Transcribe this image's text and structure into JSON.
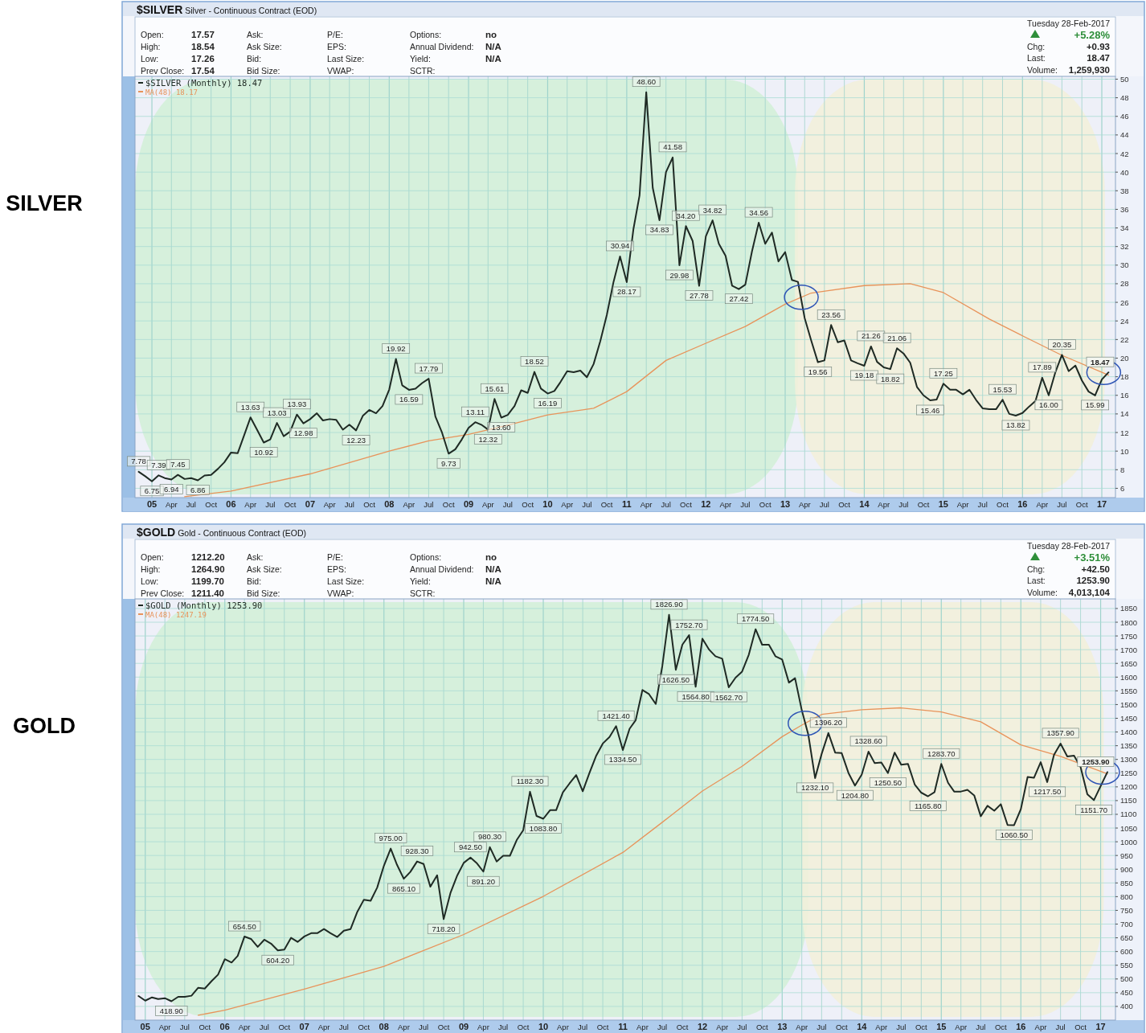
{
  "chart_data": [
    {
      "type": "line",
      "title": "SILVER",
      "subtitle": "$SILVER Silver - Continuous Contract (EOD)",
      "annotations": [
        "Open: 17.57",
        "High: 18.54",
        "Low: 17.26",
        "Prev Close: 17.54",
        "Ask:",
        "Ask Size:",
        "Bid:",
        "Bid Size:",
        "P/E:",
        "EPS:",
        "Last Size:",
        "VWAP:",
        "Options: no",
        "Annual Dividend: N/A",
        "Yield: N/A",
        "SCTR:",
        "Tuesday  28-Feb-2017",
        "+5.28%",
        "Chg: +0.93",
        "Last: 18.47",
        "Volume: 1,259,930"
      ],
      "x": [
        "2004-11",
        "2004-12",
        "2005-01",
        "2005-02",
        "2005-03",
        "2005-04",
        "2005-05",
        "2005-06",
        "2005-07",
        "2005-08",
        "2005-09",
        "2005-10",
        "2005-11",
        "2005-12",
        "2006-01",
        "2006-02",
        "2006-03",
        "2006-04",
        "2006-05",
        "2006-06",
        "2006-07",
        "2006-08",
        "2006-09",
        "2006-10",
        "2006-11",
        "2006-12",
        "2007-01",
        "2007-02",
        "2007-03",
        "2007-04",
        "2007-05",
        "2007-06",
        "2007-07",
        "2007-08",
        "2007-09",
        "2007-10",
        "2007-11",
        "2007-12",
        "2008-01",
        "2008-02",
        "2008-03",
        "2008-04",
        "2008-05",
        "2008-06",
        "2008-07",
        "2008-08",
        "2008-09",
        "2008-10",
        "2008-11",
        "2008-12",
        "2009-01",
        "2009-02",
        "2009-03",
        "2009-04",
        "2009-05",
        "2009-06",
        "2009-07",
        "2009-08",
        "2009-09",
        "2009-10",
        "2009-11",
        "2009-12",
        "2010-01",
        "2010-02",
        "2010-03",
        "2010-04",
        "2010-05",
        "2010-06",
        "2010-07",
        "2010-08",
        "2010-09",
        "2010-10",
        "2010-11",
        "2010-12",
        "2011-01",
        "2011-02",
        "2011-03",
        "2011-04",
        "2011-05",
        "2011-06",
        "2011-07",
        "2011-08",
        "2011-09",
        "2011-10",
        "2011-11",
        "2011-12",
        "2012-01",
        "2012-02",
        "2012-03",
        "2012-04",
        "2012-05",
        "2012-06",
        "2012-07",
        "2012-08",
        "2012-09",
        "2012-10",
        "2012-11",
        "2012-12",
        "2013-01",
        "2013-02",
        "2013-03",
        "2013-04",
        "2013-05",
        "2013-06",
        "2013-07",
        "2013-08",
        "2013-09",
        "2013-10",
        "2013-11",
        "2013-12",
        "2014-01",
        "2014-02",
        "2014-03",
        "2014-04",
        "2014-05",
        "2014-06",
        "2014-07",
        "2014-08",
        "2014-09",
        "2014-10",
        "2014-11",
        "2014-12",
        "2015-01",
        "2015-02",
        "2015-03",
        "2015-04",
        "2015-05",
        "2015-06",
        "2015-07",
        "2015-08",
        "2015-09",
        "2015-10",
        "2015-11",
        "2015-12",
        "2016-01",
        "2016-02",
        "2016-03",
        "2016-04",
        "2016-05",
        "2016-06",
        "2016-07",
        "2016-08",
        "2016-09",
        "2016-10",
        "2016-11",
        "2016-12",
        "2017-01",
        "2017-02"
      ],
      "series": [
        {
          "name": "$SILVER (Monthly) 18.47",
          "color": "#1f2a24",
          "values": [
            7.78,
            7.3,
            6.75,
            7.39,
            7.1,
            6.94,
            7.45,
            7.0,
            7.1,
            6.86,
            7.38,
            7.45,
            8.08,
            8.79,
            9.85,
            9.78,
            11.6,
            13.63,
            12.3,
            10.92,
            11.25,
            13.03,
            11.6,
            12.1,
            13.93,
            12.98,
            13.44,
            14.07,
            13.3,
            13.44,
            13.37,
            12.31,
            12.84,
            12.23,
            13.79,
            14.43,
            14.07,
            14.85,
            16.62,
            19.92,
            17.07,
            16.59,
            16.72,
            17.32,
            17.79,
            13.72,
            11.96,
            9.73,
            10.2,
            11.26,
            12.49,
            13.11,
            12.84,
            12.32,
            15.61,
            13.6,
            13.9,
            14.85,
            16.54,
            16.26,
            18.52,
            16.72,
            16.19,
            16.47,
            17.42,
            18.59,
            18.48,
            18.66,
            17.95,
            19.36,
            21.83,
            24.65,
            28.2,
            30.94,
            28.17,
            33.9,
            37.5,
            48.6,
            38.3,
            34.83,
            40.0,
            41.58,
            29.98,
            34.2,
            32.6,
            27.78,
            33.1,
            34.82,
            32.3,
            31.0,
            27.8,
            27.42,
            27.9,
            31.5,
            34.56,
            32.3,
            33.5,
            30.4,
            31.4,
            28.4,
            28.2,
            24.3,
            21.9,
            19.56,
            19.75,
            23.56,
            21.7,
            21.9,
            19.75,
            19.45,
            19.18,
            21.26,
            19.6,
            19.0,
            18.82,
            21.06,
            20.5,
            19.5,
            16.9,
            16.0,
            15.46,
            15.55,
            17.25,
            16.6,
            16.6,
            16.1,
            16.6,
            15.5,
            14.6,
            14.5,
            14.5,
            15.53,
            14.0,
            13.82,
            14.1,
            14.8,
            15.4,
            17.89,
            16.0,
            18.5,
            20.35,
            18.6,
            19.2,
            17.6,
            16.4,
            15.99,
            17.7,
            18.47
          ],
          "value_labels": [
            "7.78",
            null,
            "6.75",
            "7.39",
            null,
            "6.94",
            "7.45",
            null,
            null,
            "6.86",
            null,
            null,
            null,
            null,
            null,
            null,
            null,
            "13.63",
            null,
            "10.92",
            null,
            "13.03",
            null,
            null,
            "13.93",
            "12.98",
            null,
            null,
            null,
            null,
            null,
            null,
            null,
            "12.23",
            null,
            null,
            null,
            null,
            null,
            "19.92",
            null,
            "16.59",
            null,
            null,
            "17.79",
            null,
            null,
            "9.73",
            null,
            null,
            null,
            "13.11",
            null,
            "12.32",
            "15.61",
            "13.60",
            null,
            null,
            null,
            null,
            "18.52",
            null,
            "16.19",
            null,
            null,
            null,
            null,
            null,
            null,
            null,
            null,
            null,
            null,
            "30.94",
            "28.17",
            null,
            null,
            "48.60",
            null,
            "34.83",
            null,
            "41.58",
            "29.98",
            "34.20",
            null,
            "27.78",
            null,
            "34.82",
            null,
            null,
            null,
            "27.42",
            null,
            null,
            "34.56",
            null,
            null,
            null,
            null,
            null,
            null,
            null,
            null,
            "19.56",
            null,
            "23.56",
            null,
            null,
            null,
            null,
            "19.18",
            "21.26",
            null,
            null,
            "18.82",
            "21.06",
            null,
            null,
            null,
            null,
            "15.46",
            null,
            "17.25",
            null,
            null,
            null,
            null,
            null,
            null,
            null,
            null,
            "15.53",
            null,
            "13.82",
            null,
            null,
            null,
            "17.89",
            "16.00",
            null,
            "20.35",
            null,
            null,
            null,
            null,
            "15.99",
            null,
            "18.47"
          ]
        },
        {
          "name": "MA(48) 18.17",
          "color": "#e8935a",
          "x": [
            "2005-06",
            "2006-01",
            "2007-01",
            "2008-01",
            "2008-07",
            "2009-01",
            "2009-07",
            "2010-01",
            "2010-08",
            "2011-01",
            "2011-07",
            "2012-01",
            "2012-07",
            "2013-01",
            "2013-05",
            "2014-01",
            "2014-08",
            "2015-01",
            "2015-08",
            "2016-01",
            "2016-07",
            "2017-02"
          ],
          "values": [
            5.1,
            5.7,
            7.55,
            10.0,
            11.1,
            11.8,
            12.8,
            13.9,
            14.6,
            16.4,
            19.75,
            21.6,
            23.4,
            25.8,
            27.0,
            27.8,
            28.0,
            27.05,
            24.2,
            22.4,
            20.3,
            18.17
          ]
        }
      ],
      "xlim": [
        "2004-10-15",
        "2017-03-05"
      ],
      "ylim": [
        5,
        50.3
      ],
      "xticks": [
        {
          "value": "2005-01",
          "label": "05"
        },
        {
          "value": "2005-04",
          "label": "Apr"
        },
        {
          "value": "2005-07",
          "label": "Jul"
        },
        {
          "value": "2005-10",
          "label": "Oct"
        },
        {
          "value": "2006-01",
          "label": "06"
        },
        {
          "value": "2006-04",
          "label": "Apr"
        },
        {
          "value": "2006-07",
          "label": "Jul"
        },
        {
          "value": "2006-10",
          "label": "Oct"
        },
        {
          "value": "2007-01",
          "label": "07"
        },
        {
          "value": "2007-04",
          "label": "Apr"
        },
        {
          "value": "2007-07",
          "label": "Jul"
        },
        {
          "value": "2007-10",
          "label": "Oct"
        },
        {
          "value": "2008-01",
          "label": "08"
        },
        {
          "value": "2008-04",
          "label": "Apr"
        },
        {
          "value": "2008-07",
          "label": "Jul"
        },
        {
          "value": "2008-10",
          "label": "Oct"
        },
        {
          "value": "2009-01",
          "label": "09"
        },
        {
          "value": "2009-04",
          "label": "Apr"
        },
        {
          "value": "2009-07",
          "label": "Jul"
        },
        {
          "value": "2009-10",
          "label": "Oct"
        },
        {
          "value": "2010-01",
          "label": "10"
        },
        {
          "value": "2010-04",
          "label": "Apr"
        },
        {
          "value": "2010-07",
          "label": "Jul"
        },
        {
          "value": "2010-10",
          "label": "Oct"
        },
        {
          "value": "2011-01",
          "label": "11"
        },
        {
          "value": "2011-04",
          "label": "Apr"
        },
        {
          "value": "2011-07",
          "label": "Jul"
        },
        {
          "value": "2011-10",
          "label": "Oct"
        },
        {
          "value": "2012-01",
          "label": "12"
        },
        {
          "value": "2012-04",
          "label": "Apr"
        },
        {
          "value": "2012-07",
          "label": "Jul"
        },
        {
          "value": "2012-10",
          "label": "Oct"
        },
        {
          "value": "2013-01",
          "label": "13"
        },
        {
          "value": "2013-04",
          "label": "Apr"
        },
        {
          "value": "2013-07",
          "label": "Jul"
        },
        {
          "value": "2013-10",
          "label": "Oct"
        },
        {
          "value": "2014-01",
          "label": "14"
        },
        {
          "value": "2014-04",
          "label": "Apr"
        },
        {
          "value": "2014-07",
          "label": "Jul"
        },
        {
          "value": "2014-10",
          "label": "Oct"
        },
        {
          "value": "2015-01",
          "label": "15"
        },
        {
          "value": "2015-04",
          "label": "Apr"
        },
        {
          "value": "2015-07",
          "label": "Jul"
        },
        {
          "value": "2015-10",
          "label": "Oct"
        },
        {
          "value": "2016-01",
          "label": "16"
        },
        {
          "value": "2016-04",
          "label": "Apr"
        },
        {
          "value": "2016-07",
          "label": "Jul"
        },
        {
          "value": "2016-10",
          "label": "Oct"
        },
        {
          "value": "2017-01",
          "label": "17"
        }
      ],
      "yticks": [
        6,
        8,
        10,
        12,
        14,
        16,
        18,
        20,
        22,
        24,
        26,
        28,
        30,
        32,
        34,
        36,
        38,
        40,
        42,
        44,
        46,
        48,
        50
      ],
      "grid": true,
      "legend": "top left",
      "bands": [
        {
          "axis": "x",
          "from": "2004-10-15",
          "to": "2013-03-01",
          "color": "#d3efd8"
        },
        {
          "axis": "x",
          "from": "2013-02-15",
          "to": "2017-01-15",
          "color": "#f2f0da"
        }
      ]
    },
    {
      "type": "line",
      "title": "GOLD",
      "subtitle": "$GOLD Gold - Continuous Contract (EOD)",
      "annotations": [
        "Open: 1212.20",
        "High: 1264.90",
        "Low: 1199.70",
        "Prev Close: 1211.40",
        "Ask:",
        "Ask Size:",
        "Bid:",
        "Bid Size:",
        "P/E:",
        "EPS:",
        "Last Size:",
        "VWAP:",
        "Options: no",
        "Annual Dividend: N/A",
        "Yield: N/A",
        "SCTR:",
        "Tuesday  28-Feb-2017",
        "+3.51%",
        "Chg: +42.50",
        "Last: 1253.90",
        "Volume: 4,013,104"
      ],
      "x": [
        "2004-12",
        "2005-01",
        "2005-02",
        "2005-03",
        "2005-04",
        "2005-05",
        "2005-06",
        "2005-07",
        "2005-08",
        "2005-09",
        "2005-10",
        "2005-11",
        "2005-12",
        "2006-01",
        "2006-02",
        "2006-03",
        "2006-04",
        "2006-05",
        "2006-06",
        "2006-07",
        "2006-08",
        "2006-09",
        "2006-10",
        "2006-11",
        "2006-12",
        "2007-01",
        "2007-02",
        "2007-03",
        "2007-04",
        "2007-05",
        "2007-06",
        "2007-07",
        "2007-08",
        "2007-09",
        "2007-10",
        "2007-11",
        "2007-12",
        "2008-01",
        "2008-02",
        "2008-03",
        "2008-04",
        "2008-05",
        "2008-06",
        "2008-07",
        "2008-08",
        "2008-09",
        "2008-10",
        "2008-11",
        "2008-12",
        "2009-01",
        "2009-02",
        "2009-03",
        "2009-04",
        "2009-05",
        "2009-06",
        "2009-07",
        "2009-08",
        "2009-09",
        "2009-10",
        "2009-11",
        "2009-12",
        "2010-01",
        "2010-02",
        "2010-03",
        "2010-04",
        "2010-05",
        "2010-06",
        "2010-07",
        "2010-08",
        "2010-09",
        "2010-10",
        "2010-11",
        "2010-12",
        "2011-01",
        "2011-02",
        "2011-03",
        "2011-04",
        "2011-05",
        "2011-06",
        "2011-07",
        "2011-08",
        "2011-09",
        "2011-10",
        "2011-11",
        "2011-12",
        "2012-01",
        "2012-02",
        "2012-03",
        "2012-04",
        "2012-05",
        "2012-06",
        "2012-07",
        "2012-08",
        "2012-09",
        "2012-10",
        "2012-11",
        "2012-12",
        "2013-01",
        "2013-02",
        "2013-03",
        "2013-04",
        "2013-05",
        "2013-06",
        "2013-07",
        "2013-08",
        "2013-09",
        "2013-10",
        "2013-11",
        "2013-12",
        "2014-01",
        "2014-02",
        "2014-03",
        "2014-04",
        "2014-05",
        "2014-06",
        "2014-07",
        "2014-08",
        "2014-09",
        "2014-10",
        "2014-11",
        "2014-12",
        "2015-01",
        "2015-02",
        "2015-03",
        "2015-04",
        "2015-05",
        "2015-06",
        "2015-07",
        "2015-08",
        "2015-09",
        "2015-10",
        "2015-11",
        "2015-12",
        "2016-01",
        "2016-02",
        "2016-03",
        "2016-04",
        "2016-05",
        "2016-06",
        "2016-07",
        "2016-08",
        "2016-09",
        "2016-10",
        "2016-11",
        "2016-12",
        "2017-01",
        "2017-02"
      ],
      "series": [
        {
          "name": "$GOLD (Monthly) 1253.90",
          "color": "#1f2a24",
          "values": [
            438,
            421,
            433,
            427,
            430,
            418.9,
            435,
            435,
            439,
            468,
            465,
            492,
            516,
            572,
            560,
            584,
            654.5,
            646,
            617,
            643,
            629,
            604.2,
            607,
            650,
            635,
            655,
            667,
            667,
            682,
            667,
            653,
            676,
            682,
            745,
            789,
            785,
            833,
            913,
            975.0,
            916,
            865.1,
            890,
            928.3,
            919,
            836,
            878,
            718.2,
            813,
            875,
            923,
            942.5,
            923,
            891.2,
            980.3,
            928,
            949,
            949,
            1006,
            1042,
            1182.3,
            1094,
            1083.8,
            1115,
            1115,
            1180,
            1212,
            1243,
            1184,
            1251,
            1314,
            1358,
            1382,
            1421.4,
            1334.5,
            1412,
            1443,
            1553,
            1538,
            1502,
            1640,
            1826.9,
            1626.5,
            1718,
            1752.7,
            1564.8,
            1740,
            1700,
            1676,
            1667,
            1562.7,
            1598,
            1620,
            1682,
            1774.5,
            1718,
            1718,
            1676,
            1664,
            1580,
            1596,
            1479,
            1390,
            1232.1,
            1320,
            1396.2,
            1325,
            1323,
            1251,
            1204.8,
            1245,
            1328.6,
            1287,
            1289,
            1250.5,
            1325,
            1281,
            1284,
            1209,
            1179,
            1165.8,
            1181,
            1283.7,
            1215,
            1183,
            1183,
            1189,
            1169,
            1093,
            1131,
            1113,
            1137,
            1061,
            1060.5,
            1119,
            1236,
            1233,
            1290,
            1217.5,
            1317,
            1357.9,
            1311,
            1314,
            1272,
            1173,
            1151.7,
            1203,
            1253.9
          ],
          "value_labels": [
            null,
            null,
            null,
            null,
            null,
            "418.90",
            null,
            null,
            null,
            null,
            null,
            null,
            null,
            null,
            null,
            null,
            "654.50",
            null,
            null,
            null,
            null,
            "604.20",
            null,
            null,
            null,
            null,
            null,
            null,
            null,
            null,
            null,
            null,
            null,
            null,
            null,
            null,
            null,
            null,
            "975.00",
            null,
            "865.10",
            null,
            "928.30",
            null,
            null,
            null,
            "718.20",
            null,
            null,
            null,
            "942.50",
            null,
            "891.20",
            "980.30",
            null,
            null,
            null,
            null,
            null,
            "1182.30",
            null,
            "1083.80",
            null,
            null,
            null,
            null,
            null,
            null,
            null,
            null,
            null,
            null,
            "1421.40",
            "1334.50",
            null,
            null,
            null,
            null,
            null,
            null,
            "1826.90",
            "1626.50",
            null,
            "1752.70",
            "1564.80",
            null,
            null,
            null,
            null,
            "1562.70",
            null,
            null,
            null,
            "1774.50",
            null,
            null,
            null,
            null,
            null,
            null,
            null,
            null,
            "1232.10",
            null,
            "1396.20",
            null,
            null,
            null,
            "1204.80",
            null,
            "1328.60",
            null,
            null,
            "1250.50",
            null,
            null,
            null,
            null,
            null,
            "1165.80",
            null,
            "1283.70",
            null,
            null,
            null,
            null,
            null,
            null,
            null,
            null,
            null,
            null,
            "1060.50",
            null,
            null,
            null,
            null,
            "1217.50",
            null,
            "1357.90",
            null,
            null,
            null,
            null,
            "1151.70",
            null,
            "1253.90"
          ]
        },
        {
          "name": "MA(48) 1247.19",
          "color": "#e8935a",
          "x": [
            "2005-09",
            "2006-01",
            "2007-01",
            "2008-01",
            "2009-01",
            "2010-01",
            "2011-01",
            "2011-07",
            "2012-01",
            "2012-07",
            "2013-01",
            "2013-04",
            "2013-07",
            "2014-01",
            "2014-07",
            "2015-01",
            "2015-07",
            "2016-01",
            "2016-07",
            "2017-02"
          ],
          "values": [
            368,
            386,
            463,
            546,
            662,
            801,
            961,
            1071,
            1185,
            1275,
            1383,
            1425,
            1464,
            1481,
            1488,
            1473,
            1437,
            1353,
            1311,
            1247.19
          ]
        }
      ],
      "xlim": [
        "2004-11-15",
        "2017-03-10"
      ],
      "ylim": [
        350,
        1885
      ],
      "xticks": [
        {
          "value": "2005-01",
          "label": "05"
        },
        {
          "value": "2005-04",
          "label": "Apr"
        },
        {
          "value": "2005-07",
          "label": "Jul"
        },
        {
          "value": "2005-10",
          "label": "Oct"
        },
        {
          "value": "2006-01",
          "label": "06"
        },
        {
          "value": "2006-04",
          "label": "Apr"
        },
        {
          "value": "2006-07",
          "label": "Jul"
        },
        {
          "value": "2006-10",
          "label": "Oct"
        },
        {
          "value": "2007-01",
          "label": "07"
        },
        {
          "value": "2007-04",
          "label": "Apr"
        },
        {
          "value": "2007-07",
          "label": "Jul"
        },
        {
          "value": "2007-10",
          "label": "Oct"
        },
        {
          "value": "2008-01",
          "label": "08"
        },
        {
          "value": "2008-04",
          "label": "Apr"
        },
        {
          "value": "2008-07",
          "label": "Jul"
        },
        {
          "value": "2008-10",
          "label": "Oct"
        },
        {
          "value": "2009-01",
          "label": "09"
        },
        {
          "value": "2009-04",
          "label": "Apr"
        },
        {
          "value": "2009-07",
          "label": "Jul"
        },
        {
          "value": "2009-10",
          "label": "Oct"
        },
        {
          "value": "2010-01",
          "label": "10"
        },
        {
          "value": "2010-04",
          "label": "Apr"
        },
        {
          "value": "2010-07",
          "label": "Jul"
        },
        {
          "value": "2010-10",
          "label": "Oct"
        },
        {
          "value": "2011-01",
          "label": "11"
        },
        {
          "value": "2011-04",
          "label": "Apr"
        },
        {
          "value": "2011-07",
          "label": "Jul"
        },
        {
          "value": "2011-10",
          "label": "Oct"
        },
        {
          "value": "2012-01",
          "label": "12"
        },
        {
          "value": "2012-04",
          "label": "Apr"
        },
        {
          "value": "2012-07",
          "label": "Jul"
        },
        {
          "value": "2012-10",
          "label": "Oct"
        },
        {
          "value": "2013-01",
          "label": "13"
        },
        {
          "value": "2013-04",
          "label": "Apr"
        },
        {
          "value": "2013-07",
          "label": "Jul"
        },
        {
          "value": "2013-10",
          "label": "Oct"
        },
        {
          "value": "2014-01",
          "label": "14"
        },
        {
          "value": "2014-04",
          "label": "Apr"
        },
        {
          "value": "2014-07",
          "label": "Jul"
        },
        {
          "value": "2014-10",
          "label": "Oct"
        },
        {
          "value": "2015-01",
          "label": "15"
        },
        {
          "value": "2015-04",
          "label": "Apr"
        },
        {
          "value": "2015-07",
          "label": "Jul"
        },
        {
          "value": "2015-10",
          "label": "Oct"
        },
        {
          "value": "2016-01",
          "label": "16"
        },
        {
          "value": "2016-04",
          "label": "Apr"
        },
        {
          "value": "2016-07",
          "label": "Jul"
        },
        {
          "value": "2016-10",
          "label": "Oct"
        },
        {
          "value": "2017-01",
          "label": "17"
        }
      ],
      "yticks": [
        400,
        450,
        500,
        550,
        600,
        650,
        700,
        750,
        800,
        850,
        900,
        950,
        1000,
        1050,
        1100,
        1150,
        1200,
        1250,
        1300,
        1350,
        1400,
        1450,
        1500,
        1550,
        1600,
        1650,
        1700,
        1750,
        1800,
        1850
      ],
      "grid": true,
      "legend": "top left",
      "bands": [
        {
          "axis": "x",
          "from": "2004-11-15",
          "to": "2013-05-01",
          "color": "#d3efd8"
        },
        {
          "axis": "x",
          "from": "2013-04-01",
          "to": "2017-01-15",
          "color": "#f2f0da"
        }
      ]
    }
  ]
}
